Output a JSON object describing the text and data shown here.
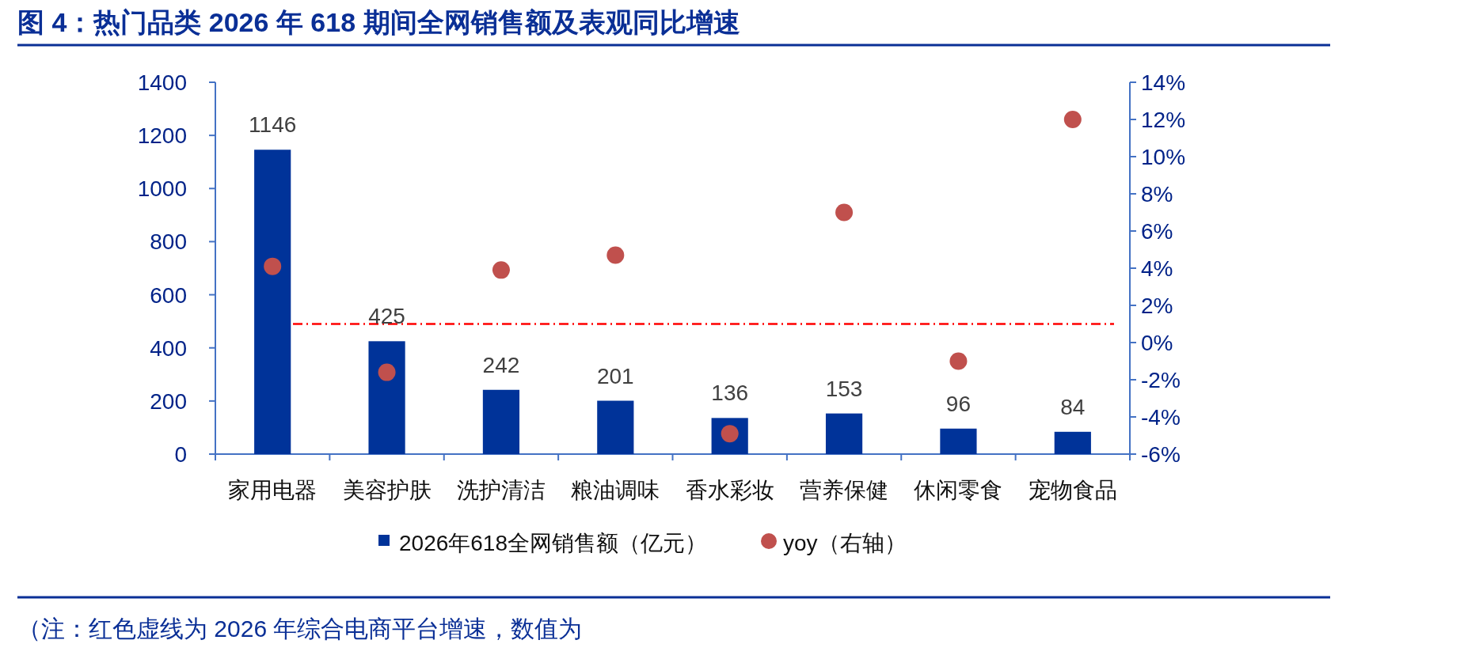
{
  "chart_data": {
    "type": "bar",
    "title": "图 4：热门品类 2026 年 618 期间全网销售额及表观同比增速",
    "categories": [
      "家用电器",
      "美容护肤",
      "洗护清洁",
      "粮油调味",
      "香水彩妆",
      "营养保健",
      "休闲零食",
      "宠物食品"
    ],
    "series": [
      {
        "name": "2026年618全网销售额（亿元）",
        "type": "bar",
        "color": "#003399",
        "values": [
          1146,
          425,
          242,
          201,
          136,
          153,
          96,
          84
        ],
        "value_labels": [
          "1146",
          "425",
          "242",
          "201",
          "136",
          "153",
          "96",
          "84"
        ]
      },
      {
        "name": "yoy（右轴）",
        "type": "scatter",
        "axis": "y2",
        "color": "#c0504d",
        "marker": "circle",
        "values": [
          4.1,
          -1.6,
          3.9,
          4.7,
          -4.9,
          7.0,
          -1.0,
          12.0
        ]
      }
    ],
    "ylim": [
      0,
      1400
    ],
    "yticks": [
      0,
      200,
      400,
      600,
      800,
      1000,
      1200,
      1400
    ],
    "y2lim": [
      -6,
      14
    ],
    "y2ticks": [
      {
        "value": -6,
        "label": "-6%"
      },
      {
        "value": -4,
        "label": "-4%"
      },
      {
        "value": -2,
        "label": "-2%"
      },
      {
        "value": 0,
        "label": "0%"
      },
      {
        "value": 2,
        "label": "2%"
      },
      {
        "value": 4,
        "label": "4%"
      },
      {
        "value": 6,
        "label": "6%"
      },
      {
        "value": 8,
        "label": "8%"
      },
      {
        "value": 10,
        "label": "10%"
      },
      {
        "value": 12,
        "label": "12%"
      },
      {
        "value": 14,
        "label": "14%"
      }
    ],
    "ref_lines": [
      {
        "axis": "y2",
        "value": 1,
        "color": "#ff0000",
        "line_style": "dashdot"
      }
    ],
    "legend": "bottom",
    "annotations": [
      "（注：红色虚线为 2026 年综合电商平台增速，数值为"
    ]
  }
}
